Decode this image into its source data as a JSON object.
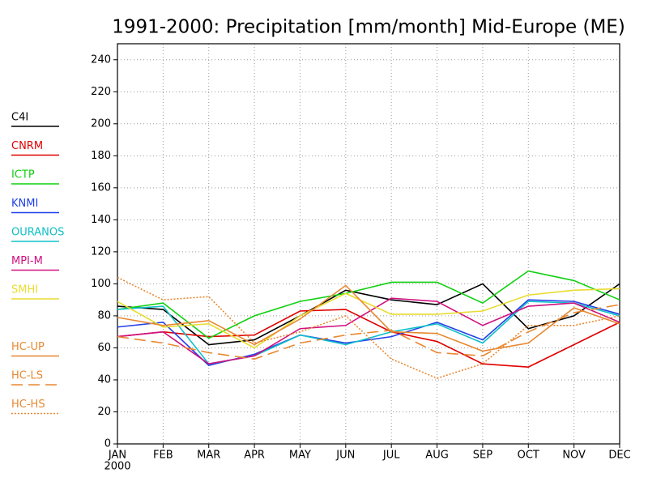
{
  "chart_data": {
    "type": "line",
    "title": "1991-2000: Precipitation [mm/month] Mid-Europe (ME)",
    "categories": [
      "JAN",
      "FEB",
      "MAR",
      "APR",
      "MAY",
      "JUN",
      "JUL",
      "AUG",
      "SEP",
      "OCT",
      "NOV",
      "DEC"
    ],
    "x_sublabel": "2000",
    "ylim": [
      0,
      250
    ],
    "yticks": [
      0,
      20,
      40,
      60,
      80,
      100,
      120,
      140,
      160,
      180,
      200,
      220,
      240
    ],
    "grid": true,
    "legend": "left",
    "series": [
      {
        "name": "C4I",
        "color": "#000000",
        "style": "solid",
        "values": [
          86,
          84,
          62,
          65,
          80,
          96,
          90,
          87,
          100,
          72,
          80,
          100
        ]
      },
      {
        "name": "CNRM",
        "color": "#e00000",
        "style": "solid",
        "values": [
          67,
          70,
          67,
          68,
          83,
          84,
          70,
          64,
          50,
          48,
          62,
          76
        ]
      },
      {
        "name": "ICTP",
        "color": "#10d010",
        "style": "solid",
        "values": [
          84,
          88,
          66,
          80,
          89,
          94,
          101,
          101,
          88,
          108,
          102,
          90
        ]
      },
      {
        "name": "KNMI",
        "color": "#2040e8",
        "style": "solid",
        "values": [
          73,
          76,
          49,
          56,
          68,
          63,
          67,
          76,
          65,
          90,
          89,
          81
        ]
      },
      {
        "name": "OURANOS",
        "color": "#10c0c8",
        "style": "solid",
        "values": [
          84,
          86,
          50,
          55,
          68,
          62,
          70,
          75,
          63,
          89,
          88,
          80
        ]
      },
      {
        "name": "MPI-M",
        "color": "#d01080",
        "style": "solid",
        "values": [
          67,
          70,
          50,
          55,
          72,
          74,
          91,
          89,
          74,
          86,
          88,
          76
        ]
      },
      {
        "name": "SMHI",
        "color": "#e8dc30",
        "style": "solid",
        "values": [
          89,
          73,
          75,
          60,
          80,
          94,
          81,
          81,
          83,
          93,
          96,
          97
        ]
      },
      {
        "name": "HC-UP",
        "color": "#e88830",
        "style": "solid",
        "values": [
          79,
          74,
          77,
          62,
          78,
          99,
          70,
          69,
          58,
          63,
          85,
          75
        ]
      },
      {
        "name": "HC-LS",
        "color": "#e88830",
        "style": "dashed",
        "values": [
          67,
          63,
          57,
          53,
          63,
          68,
          71,
          57,
          55,
          70,
          82,
          87
        ]
      },
      {
        "name": "HC-HS",
        "color": "#e88830",
        "style": "dotted",
        "values": [
          104,
          90,
          92,
          63,
          70,
          80,
          53,
          41,
          50,
          74,
          74,
          80
        ]
      }
    ]
  }
}
